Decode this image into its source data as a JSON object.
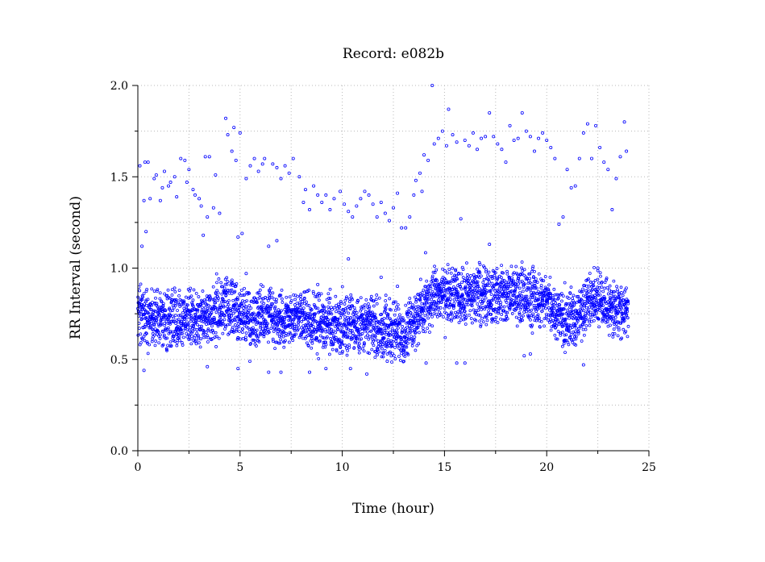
{
  "chart_data": {
    "type": "scatter",
    "title": "Record:  e082b",
    "xlabel": "Time (hour)",
    "ylabel": "RR Interval (second)",
    "xlim": [
      0,
      25
    ],
    "ylim": [
      0,
      2.0
    ],
    "x_ticks": [
      0,
      5,
      10,
      15,
      20,
      25
    ],
    "x_tick_labels": [
      "0",
      "5",
      "10",
      "15",
      "20",
      "25"
    ],
    "x_minor_ticks": [
      2.5,
      7.5,
      12.5,
      17.5,
      22.5
    ],
    "y_ticks": [
      0,
      0.5,
      1.0,
      1.5,
      2.0
    ],
    "y_tick_labels": [
      "0.0",
      "0.5",
      "1.0",
      "1.5",
      "2.0"
    ],
    "y_minor_ticks": [
      0.25,
      0.75,
      1.25,
      1.75
    ],
    "grid": true,
    "legend": "none",
    "marker": "small open circle",
    "series": [
      {
        "color": "#0000ff",
        "points": [
          [
            0.1,
            1.56
          ],
          [
            0.2,
            1.12
          ],
          [
            0.3,
            1.37
          ],
          [
            0.35,
            1.58
          ],
          [
            0.4,
            1.2
          ],
          [
            0.5,
            1.58
          ],
          [
            0.6,
            1.38
          ],
          [
            0.8,
            1.49
          ],
          [
            0.9,
            1.51
          ],
          [
            1.1,
            1.37
          ],
          [
            1.2,
            1.44
          ],
          [
            1.3,
            1.53
          ],
          [
            1.5,
            1.45
          ],
          [
            1.6,
            1.47
          ],
          [
            1.8,
            1.5
          ],
          [
            1.9,
            1.39
          ],
          [
            2.1,
            1.6
          ],
          [
            2.3,
            1.59
          ],
          [
            2.4,
            1.47
          ],
          [
            2.5,
            1.54
          ],
          [
            2.7,
            1.43
          ],
          [
            2.8,
            1.4
          ],
          [
            3.0,
            1.38
          ],
          [
            3.1,
            1.34
          ],
          [
            3.2,
            1.18
          ],
          [
            3.3,
            1.61
          ],
          [
            3.4,
            1.28
          ],
          [
            3.5,
            1.61
          ],
          [
            3.8,
            1.51
          ],
          [
            4.0,
            1.3
          ],
          [
            4.3,
            1.82
          ],
          [
            4.4,
            1.73
          ],
          [
            4.6,
            1.64
          ],
          [
            4.7,
            1.77
          ],
          [
            4.8,
            1.59
          ],
          [
            4.9,
            1.17
          ],
          [
            5.0,
            1.74
          ],
          [
            5.1,
            1.19
          ],
          [
            5.3,
            1.49
          ],
          [
            5.5,
            1.56
          ],
          [
            5.7,
            1.6
          ],
          [
            5.9,
            1.53
          ],
          [
            6.1,
            1.57
          ],
          [
            6.2,
            1.6
          ],
          [
            6.4,
            1.12
          ],
          [
            6.6,
            1.57
          ],
          [
            6.8,
            1.55
          ],
          [
            7.0,
            1.49
          ],
          [
            7.2,
            1.56
          ],
          [
            7.4,
            1.52
          ],
          [
            7.6,
            1.6
          ],
          [
            7.9,
            1.5
          ],
          [
            8.1,
            1.36
          ],
          [
            8.2,
            1.43
          ],
          [
            8.4,
            1.32
          ],
          [
            8.6,
            1.45
          ],
          [
            8.8,
            1.4
          ],
          [
            9.0,
            1.36
          ],
          [
            9.2,
            1.4
          ],
          [
            9.4,
            1.32
          ],
          [
            9.6,
            1.38
          ],
          [
            9.9,
            1.42
          ],
          [
            10.1,
            1.35
          ],
          [
            10.3,
            1.31
          ],
          [
            10.5,
            1.28
          ],
          [
            10.7,
            1.34
          ],
          [
            10.9,
            1.38
          ],
          [
            11.1,
            1.42
          ],
          [
            11.3,
            1.4
          ],
          [
            11.5,
            1.35
          ],
          [
            11.7,
            1.28
          ],
          [
            11.9,
            1.36
          ],
          [
            12.1,
            1.3
          ],
          [
            12.3,
            1.26
          ],
          [
            12.5,
            1.33
          ],
          [
            12.7,
            1.41
          ],
          [
            12.9,
            1.22
          ],
          [
            13.1,
            1.22
          ],
          [
            13.3,
            1.28
          ],
          [
            13.5,
            1.4
          ],
          [
            13.6,
            1.48
          ],
          [
            13.8,
            1.52
          ],
          [
            13.9,
            1.42
          ],
          [
            14.0,
            1.62
          ],
          [
            14.2,
            1.59
          ],
          [
            14.4,
            2.0
          ],
          [
            14.5,
            1.68
          ],
          [
            14.7,
            1.71
          ],
          [
            14.9,
            1.75
          ],
          [
            15.1,
            1.67
          ],
          [
            15.2,
            1.87
          ],
          [
            15.4,
            1.73
          ],
          [
            15.6,
            1.69
          ],
          [
            15.8,
            1.27
          ],
          [
            16.0,
            1.7
          ],
          [
            16.2,
            1.67
          ],
          [
            16.4,
            1.74
          ],
          [
            16.6,
            1.65
          ],
          [
            16.8,
            1.71
          ],
          [
            17.0,
            1.72
          ],
          [
            17.2,
            1.85
          ],
          [
            17.4,
            1.72
          ],
          [
            17.6,
            1.68
          ],
          [
            17.8,
            1.65
          ],
          [
            18.0,
            1.58
          ],
          [
            18.2,
            1.78
          ],
          [
            18.4,
            1.7
          ],
          [
            18.6,
            1.71
          ],
          [
            18.8,
            1.85
          ],
          [
            19.0,
            1.75
          ],
          [
            19.2,
            1.72
          ],
          [
            19.4,
            1.64
          ],
          [
            19.6,
            1.71
          ],
          [
            19.8,
            1.74
          ],
          [
            20.0,
            1.7
          ],
          [
            20.2,
            1.66
          ],
          [
            20.4,
            1.6
          ],
          [
            20.6,
            1.24
          ],
          [
            20.8,
            1.28
          ],
          [
            21.0,
            1.54
          ],
          [
            21.2,
            1.44
          ],
          [
            21.4,
            1.45
          ],
          [
            21.6,
            1.6
          ],
          [
            21.8,
            1.74
          ],
          [
            22.0,
            1.79
          ],
          [
            22.2,
            1.6
          ],
          [
            22.4,
            1.78
          ],
          [
            22.6,
            1.66
          ],
          [
            22.8,
            1.58
          ],
          [
            23.0,
            1.54
          ],
          [
            23.2,
            1.32
          ],
          [
            23.4,
            1.49
          ],
          [
            23.6,
            1.61
          ],
          [
            23.8,
            1.8
          ],
          [
            23.9,
            1.64
          ],
          [
            0.3,
            0.44
          ],
          [
            3.4,
            0.46
          ],
          [
            4.9,
            0.45
          ],
          [
            6.4,
            0.43
          ],
          [
            7.0,
            0.43
          ],
          [
            8.4,
            0.43
          ],
          [
            9.2,
            0.45
          ],
          [
            10.3,
            1.05
          ],
          [
            10.4,
            0.45
          ],
          [
            11.2,
            0.42
          ],
          [
            12.2,
            0.49
          ],
          [
            14.1,
            0.48
          ],
          [
            15.6,
            0.48
          ],
          [
            16.0,
            0.48
          ],
          [
            18.9,
            0.52
          ],
          [
            19.2,
            0.53
          ],
          [
            21.8,
            0.47
          ],
          [
            22.5,
            1.0
          ],
          [
            6.8,
            1.15
          ],
          [
            8.8,
            0.91
          ],
          [
            11.9,
            0.95
          ],
          [
            12.7,
            0.9
          ],
          [
            17.2,
            1.13
          ],
          [
            5.3,
            0.97
          ],
          [
            3.7,
            1.33
          ]
        ]
      }
    ],
    "dense_band": [
      [
        0.0,
        0.76
      ],
      [
        0.5,
        0.74
      ],
      [
        1.0,
        0.71
      ],
      [
        1.5,
        0.72
      ],
      [
        2.0,
        0.73
      ],
      [
        2.5,
        0.74
      ],
      [
        3.0,
        0.72
      ],
      [
        3.5,
        0.74
      ],
      [
        4.0,
        0.78
      ],
      [
        4.5,
        0.79
      ],
      [
        5.0,
        0.75
      ],
      [
        5.5,
        0.72
      ],
      [
        6.0,
        0.75
      ],
      [
        6.5,
        0.74
      ],
      [
        7.0,
        0.72
      ],
      [
        7.5,
        0.71
      ],
      [
        8.0,
        0.73
      ],
      [
        8.5,
        0.71
      ],
      [
        9.0,
        0.7
      ],
      [
        9.5,
        0.69
      ],
      [
        10.0,
        0.68
      ],
      [
        10.5,
        0.7
      ],
      [
        11.0,
        0.69
      ],
      [
        11.5,
        0.68
      ],
      [
        12.0,
        0.67
      ],
      [
        12.5,
        0.66
      ],
      [
        13.0,
        0.64
      ],
      [
        13.5,
        0.72
      ],
      [
        14.0,
        0.79
      ],
      [
        14.5,
        0.85
      ],
      [
        15.0,
        0.84
      ],
      [
        15.5,
        0.85
      ],
      [
        16.0,
        0.84
      ],
      [
        16.5,
        0.85
      ],
      [
        17.0,
        0.86
      ],
      [
        17.5,
        0.84
      ],
      [
        18.0,
        0.85
      ],
      [
        18.5,
        0.86
      ],
      [
        19.0,
        0.84
      ],
      [
        19.5,
        0.82
      ],
      [
        20.0,
        0.83
      ],
      [
        20.5,
        0.76
      ],
      [
        21.0,
        0.7
      ],
      [
        21.5,
        0.72
      ],
      [
        22.0,
        0.82
      ],
      [
        22.5,
        0.83
      ],
      [
        23.0,
        0.8
      ],
      [
        23.5,
        0.78
      ],
      [
        24.0,
        0.77
      ]
    ]
  }
}
